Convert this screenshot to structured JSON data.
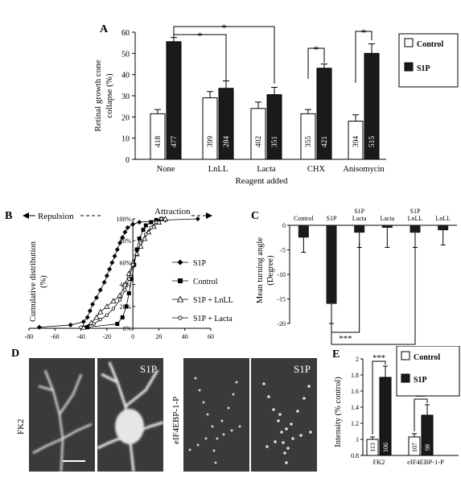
{
  "panels": {
    "A": {
      "label": "A",
      "chart_data": {
        "type": "bar",
        "ylabel": "Retinal growth cone collapse (%)",
        "xlabel": "Reagent added",
        "ylim": [
          0,
          60
        ],
        "yticks": [
          0,
          10,
          20,
          30,
          40,
          50,
          60
        ],
        "categories": [
          "None",
          "LnLL",
          "Lacta",
          "CHX",
          "Anisomycin"
        ],
        "series": [
          {
            "name": "Control",
            "values": [
              21.5,
              29,
              24,
              21.5,
              18
            ],
            "errors": [
              2,
              3,
              3,
              2,
              3
            ],
            "n": [
              "418",
              "399",
              "402",
              "355",
              "394"
            ],
            "color": "#ffffff"
          },
          {
            "name": "S1P",
            "values": [
              55.5,
              33.5,
              30.5,
              43,
              50
            ],
            "errors": [
              2,
              3.5,
              3.5,
              2,
              4.5
            ],
            "n": [
              "477",
              "284",
              "351",
              "421",
              "515"
            ],
            "color": "#1a1a1a"
          }
        ],
        "significance": [
          "*",
          "*",
          "*",
          "*"
        ],
        "legend": [
          "Control",
          "S1P"
        ]
      }
    },
    "B": {
      "label": "B",
      "arrow_left": "Repulsion",
      "arrow_right": "Attraction",
      "chart_data": {
        "type": "line",
        "ylabel": "Cumulative distribution (%)",
        "xlim": [
          -80,
          60
        ],
        "ylim": [
          0,
          100
        ],
        "xticks": [
          -80,
          -60,
          -40,
          -20,
          0,
          20,
          40,
          60
        ],
        "yticks": [
          "0%",
          "20%",
          "40%",
          "60%",
          "80%",
          "100%"
        ],
        "series": [
          {
            "name": "S1P",
            "marker": "diamond",
            "x": [
              -72,
              -48,
              -38,
              -35,
              -33,
              -31,
              -28,
              -25,
              -22,
              -20,
              -18,
              -16,
              -14,
              -12,
              -10,
              -8,
              -6,
              -4,
              0,
              5,
              25,
              50
            ],
            "y": [
              1,
              3,
              6,
              10,
              16,
              22,
              28,
              35,
              42,
              48,
              54,
              60,
              66,
              72,
              78,
              83,
              88,
              92,
              95,
              97,
              99,
              100
            ]
          },
          {
            "name": "Control",
            "marker": "square",
            "x": [
              -35,
              -12,
              -8,
              -5,
              -3,
              -1,
              1,
              3,
              5,
              8,
              10,
              14,
              18,
              22
            ],
            "y": [
              1,
              4,
              10,
              20,
              32,
              45,
              58,
              72,
              82,
              90,
              94,
              97,
              99,
              100
            ]
          },
          {
            "name": "S1P + LnLL",
            "marker": "triangle",
            "x": [
              -38,
              -32,
              -28,
              -25,
              -20,
              -15,
              -10,
              -6,
              -3,
              0,
              3,
              6,
              9,
              12,
              16,
              20,
              25
            ],
            "y": [
              1,
              5,
              10,
              15,
              20,
              25,
              30,
              40,
              50,
              60,
              68,
              75,
              82,
              88,
              93,
              97,
              100
            ]
          },
          {
            "name": "S1P + Lacta",
            "marker": "circle",
            "x": [
              -40,
              -30,
              -25,
              -20,
              -15,
              -10,
              -6,
              -3,
              0,
              3,
              6,
              10,
              14,
              18,
              22
            ],
            "y": [
              1,
              4,
              8,
              12,
              18,
              26,
              35,
              45,
              58,
              68,
              78,
              86,
              92,
              97,
              100
            ]
          }
        ],
        "legend": [
          "S1P",
          "Control",
          "S1P + LnLL",
          "S1P + Lacta"
        ]
      }
    },
    "C": {
      "label": "C",
      "chart_data": {
        "type": "bar",
        "ylabel": "Mean turning angle (Degree)",
        "ylim": [
          -20,
          0
        ],
        "yticks": [
          "0",
          "-5",
          "-10",
          "-15",
          "-20"
        ],
        "categories": [
          "Control",
          "S1P",
          "S1P Lacta",
          "Lacta",
          "S1P LnLL",
          "LnLL"
        ],
        "values": [
          -2.5,
          -16,
          -1.5,
          -0.5,
          -1.5,
          -1
        ],
        "errors": [
          3,
          4,
          3,
          4,
          3,
          3
        ],
        "significance": [
          "***",
          "***"
        ]
      }
    },
    "D": {
      "label": "D",
      "images": [
        {
          "corner": ""
        },
        {
          "corner": "S1P"
        },
        {
          "corner": ""
        },
        {
          "corner": "S1P"
        }
      ],
      "row_labels": [
        "FK2",
        "eIF4EBP-1-P"
      ]
    },
    "E": {
      "label": "E",
      "chart_data": {
        "type": "bar",
        "ylabel": "Intensity (% control)",
        "ylim": [
          0.8,
          2.0
        ],
        "yticks": [
          "0.8",
          "1",
          "1.2",
          "1.4",
          "1.6",
          "1.8",
          "2"
        ],
        "categories": [
          "FK2",
          "eIF4EBP-1-P"
        ],
        "series": [
          {
            "name": "Control",
            "values": [
              1.0,
              1.03
            ],
            "errors": [
              0.03,
              0.04
            ],
            "n": [
              "113",
              "107"
            ],
            "color": "#ffffff"
          },
          {
            "name": "S1P",
            "values": [
              1.77,
              1.3
            ],
            "errors": [
              0.14,
              0.13
            ],
            "n": [
              "106",
              "98"
            ],
            "color": "#1a1a1a"
          }
        ],
        "significance": [
          "***",
          "n.s."
        ],
        "legend": [
          "Control",
          "S1P"
        ]
      }
    }
  }
}
